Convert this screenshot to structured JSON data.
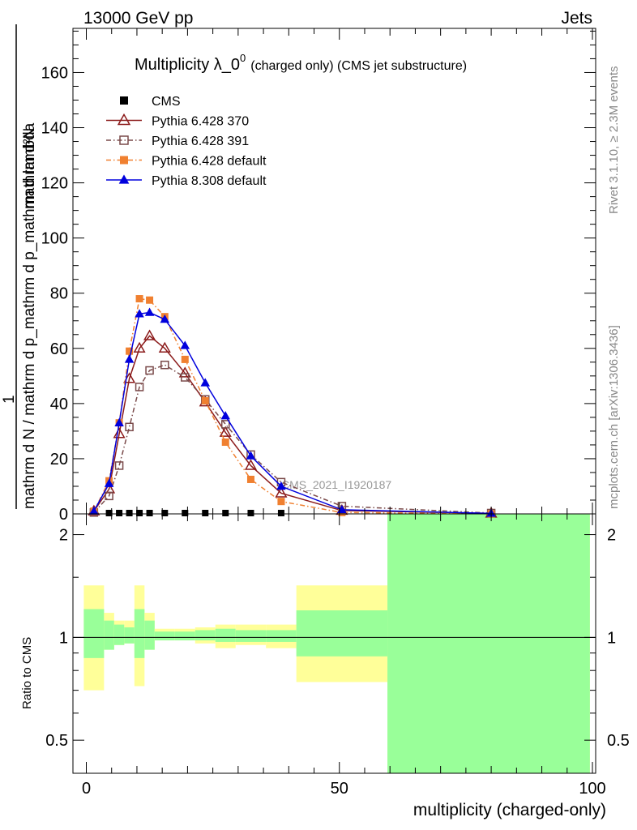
{
  "header": {
    "left": "13000 GeV pp",
    "right": "Jets"
  },
  "side_texts": {
    "rivet": "Rivet 3.1.10, ≥ 2.3M events",
    "mcplots": "mcplots.cern.ch [arXiv:1306.3436]"
  },
  "watermark": "CMS_2021_I1920187",
  "chart_data": [
    {
      "type": "line",
      "title": "Multiplicity λ_0",
      "title_sup": "0",
      "title_suffix": "(charged only) (CMS jet substructure)",
      "xlabel": "multiplicity (charged-only)",
      "ylabel": "1 / mathrm d N / mathrm d p_mathrm d p_mathrm d lambda  mathrm d²N",
      "ylabel_num": "mathrm d²N",
      "ylabel_den": "mathrm d N / mathrm d p_mathrm d p_mathrm d lambda",
      "ylabel_prefix": "1",
      "xlim": [
        -2,
        100
      ],
      "ylim": [
        0,
        176
      ],
      "xticks": [
        0,
        50,
        100
      ],
      "yticks": [
        0,
        20,
        40,
        60,
        80,
        100,
        120,
        140,
        160
      ],
      "legend_position": "top-left",
      "series": [
        {
          "name": "CMS",
          "color": "#000000",
          "marker": "square",
          "x": [
            4.5,
            6.5,
            8.5,
            10.5,
            12.5,
            15.5,
            19.5,
            23.5,
            27.5,
            32.5,
            38.5
          ],
          "y": [
            0.3,
            0.3,
            0.3,
            0.3,
            0.3,
            0.3,
            0.3,
            0.3,
            0.3,
            0.3,
            0.3
          ]
        },
        {
          "name": "Pythia 6.428 370",
          "color": "#8b1a1a",
          "marker": "triangle-open",
          "dash": "solid",
          "x": [
            1.5,
            4.5,
            6.5,
            8.5,
            10.5,
            12.5,
            15.5,
            19.5,
            23.5,
            27.5,
            32.5,
            38.5,
            50.5,
            80
          ],
          "y": [
            1,
            9,
            29,
            49,
            60,
            64.5,
            60,
            51,
            40.5,
            29.5,
            17.5,
            7.5,
            1.2,
            0.2
          ]
        },
        {
          "name": "Pythia 6.428 391",
          "color": "#7a4a4a",
          "marker": "square-open",
          "dash": "dashdot",
          "x": [
            1.5,
            4.5,
            6.5,
            8.5,
            10.5,
            12.5,
            15.5,
            19.5,
            23.5,
            27.5,
            32.5,
            38.5,
            50.5,
            80
          ],
          "y": [
            0.5,
            6.5,
            17.5,
            31.5,
            46,
            52,
            54,
            49.5,
            41.5,
            32.5,
            21.5,
            11.5,
            2.8,
            0.3
          ]
        },
        {
          "name": "Pythia 6.428 default",
          "color": "#f08030",
          "marker": "square",
          "dash": "dashdot",
          "x": [
            1.5,
            4.5,
            6.5,
            8.5,
            10.5,
            12.5,
            15.5,
            19.5,
            23.5,
            27.5,
            32.5,
            38.5,
            50.5,
            80
          ],
          "y": [
            1,
            12,
            33,
            59,
            78,
            77.5,
            71.5,
            56,
            41,
            26,
            12.5,
            4.5,
            0.5,
            0.05
          ]
        },
        {
          "name": "Pythia 8.308 default",
          "color": "#0000dd",
          "marker": "triangle",
          "dash": "solid",
          "x": [
            1.5,
            4.5,
            6.5,
            8.5,
            10.5,
            12.5,
            15.5,
            19.5,
            23.5,
            27.5,
            32.5,
            38.5,
            50.5,
            80
          ],
          "y": [
            1,
            11,
            33,
            56,
            72.5,
            73,
            70.5,
            61,
            47.5,
            35.5,
            21,
            10,
            1.5,
            0.2
          ]
        }
      ]
    },
    {
      "type": "area",
      "ylabel": "Ratio to CMS",
      "ylog": true,
      "ylim": [
        0.4,
        2.3
      ],
      "yticks": [
        0.5,
        1,
        2
      ],
      "reference_line": 1,
      "bands": [
        {
          "x0": -0.5,
          "x1": 3.5,
          "inner": [
            0.87,
            1.21
          ],
          "outer": [
            0.7,
            1.42
          ]
        },
        {
          "x0": 3.5,
          "x1": 5.5,
          "inner": [
            0.92,
            1.12
          ],
          "outer": [
            0.92,
            1.18
          ]
        },
        {
          "x0": 5.5,
          "x1": 7.5,
          "inner": [
            0.95,
            1.09
          ],
          "outer": [
            0.95,
            1.12
          ]
        },
        {
          "x0": 7.5,
          "x1": 9.5,
          "inner": [
            0.96,
            1.07
          ],
          "outer": [
            0.96,
            1.12
          ]
        },
        {
          "x0": 9.5,
          "x1": 11.5,
          "inner": [
            0.87,
            1.21
          ],
          "outer": [
            0.72,
            1.42
          ]
        },
        {
          "x0": 11.5,
          "x1": 13.5,
          "inner": [
            0.92,
            1.12
          ],
          "outer": [
            0.92,
            1.18
          ]
        },
        {
          "x0": 13.5,
          "x1": 17.5,
          "inner": [
            0.98,
            1.04
          ],
          "outer": [
            0.98,
            1.06
          ]
        },
        {
          "x0": 17.5,
          "x1": 21.5,
          "inner": [
            0.98,
            1.04
          ],
          "outer": [
            0.98,
            1.06
          ]
        },
        {
          "x0": 21.5,
          "x1": 25.5,
          "inner": [
            0.98,
            1.05
          ],
          "outer": [
            0.96,
            1.07
          ]
        },
        {
          "x0": 25.5,
          "x1": 29.5,
          "inner": [
            0.97,
            1.06
          ],
          "outer": [
            0.93,
            1.09
          ]
        },
        {
          "x0": 29.5,
          "x1": 35.5,
          "inner": [
            0.97,
            1.05
          ],
          "outer": [
            0.95,
            1.09
          ]
        },
        {
          "x0": 35.5,
          "x1": 41.5,
          "inner": [
            0.97,
            1.05
          ],
          "outer": [
            0.93,
            1.09
          ]
        },
        {
          "x0": 41.5,
          "x1": 59.5,
          "inner": [
            0.88,
            1.2
          ],
          "outer": [
            0.74,
            1.42
          ]
        },
        {
          "x0": 59.5,
          "x1": 99.5,
          "inner": [
            0.37,
            2.4
          ],
          "outer": [
            0.37,
            2.4
          ]
        }
      ],
      "band_colors": {
        "inner": "#99ff99",
        "outer": "#ffff99"
      }
    }
  ]
}
